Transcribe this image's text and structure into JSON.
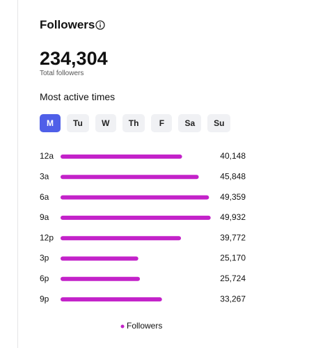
{
  "header": {
    "title": "Followers"
  },
  "total": {
    "value": "234,304",
    "label": "Total followers"
  },
  "section_title": "Most active times",
  "days": [
    "M",
    "Tu",
    "W",
    "Th",
    "F",
    "Sa",
    "Su"
  ],
  "selected_day": 0,
  "chart_data": {
    "type": "hbar",
    "categories": [
      "12a",
      "3a",
      "6a",
      "9a",
      "12p",
      "3p",
      "6p",
      "9p"
    ],
    "series": [
      {
        "name": "Followers",
        "color": "#c322c9",
        "values": [
          40148,
          45848,
          49359,
          49932,
          39772,
          25170,
          25724,
          33267
        ],
        "value_labels": [
          "40,148",
          "45,848",
          "49,359",
          "49,932",
          "39,772",
          "25,170",
          "25,724",
          "33,267"
        ]
      }
    ],
    "xlim": [
      0,
      50000
    ]
  }
}
